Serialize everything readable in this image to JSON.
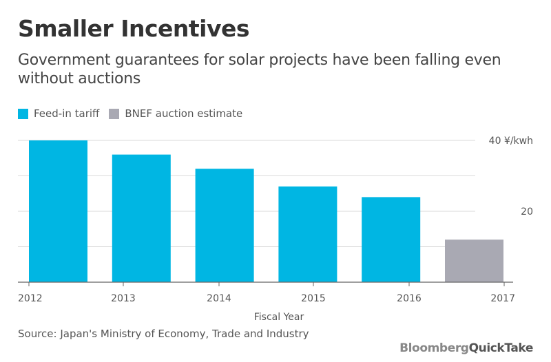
{
  "title": "Smaller Incentives",
  "subtitle": "Government guarantees for solar projects have been falling even without auctions",
  "source": "Source: Japan's Ministry of Economy, Trade and Industry",
  "logo": {
    "brand": "Bloomberg",
    "product": "QuickTake"
  },
  "colors": {
    "feed_in": "#00b6e3",
    "auction": "#a9a9b3",
    "grid": "#d9d9d9",
    "axis": "#666666"
  },
  "chart_data": {
    "type": "bar",
    "categories": [
      "2012",
      "2013",
      "2014",
      "2015",
      "2016",
      "2017"
    ],
    "values": [
      40,
      36,
      32,
      27,
      24,
      12
    ],
    "series": [
      {
        "name": "Feed-in tariff",
        "values": [
          40,
          36,
          32,
          27,
          24,
          null
        ]
      },
      {
        "name": "BNEF auction estimate",
        "values": [
          null,
          null,
          null,
          null,
          null,
          12
        ]
      }
    ],
    "xlabel": "Fiscal Year",
    "ylabel": "",
    "ylim": [
      0,
      40
    ],
    "yticks": [
      {
        "value": 40,
        "label": "40 ¥/kwh"
      },
      {
        "value": 20,
        "label": "20"
      }
    ],
    "grid": true,
    "legend_position": "top-left"
  }
}
